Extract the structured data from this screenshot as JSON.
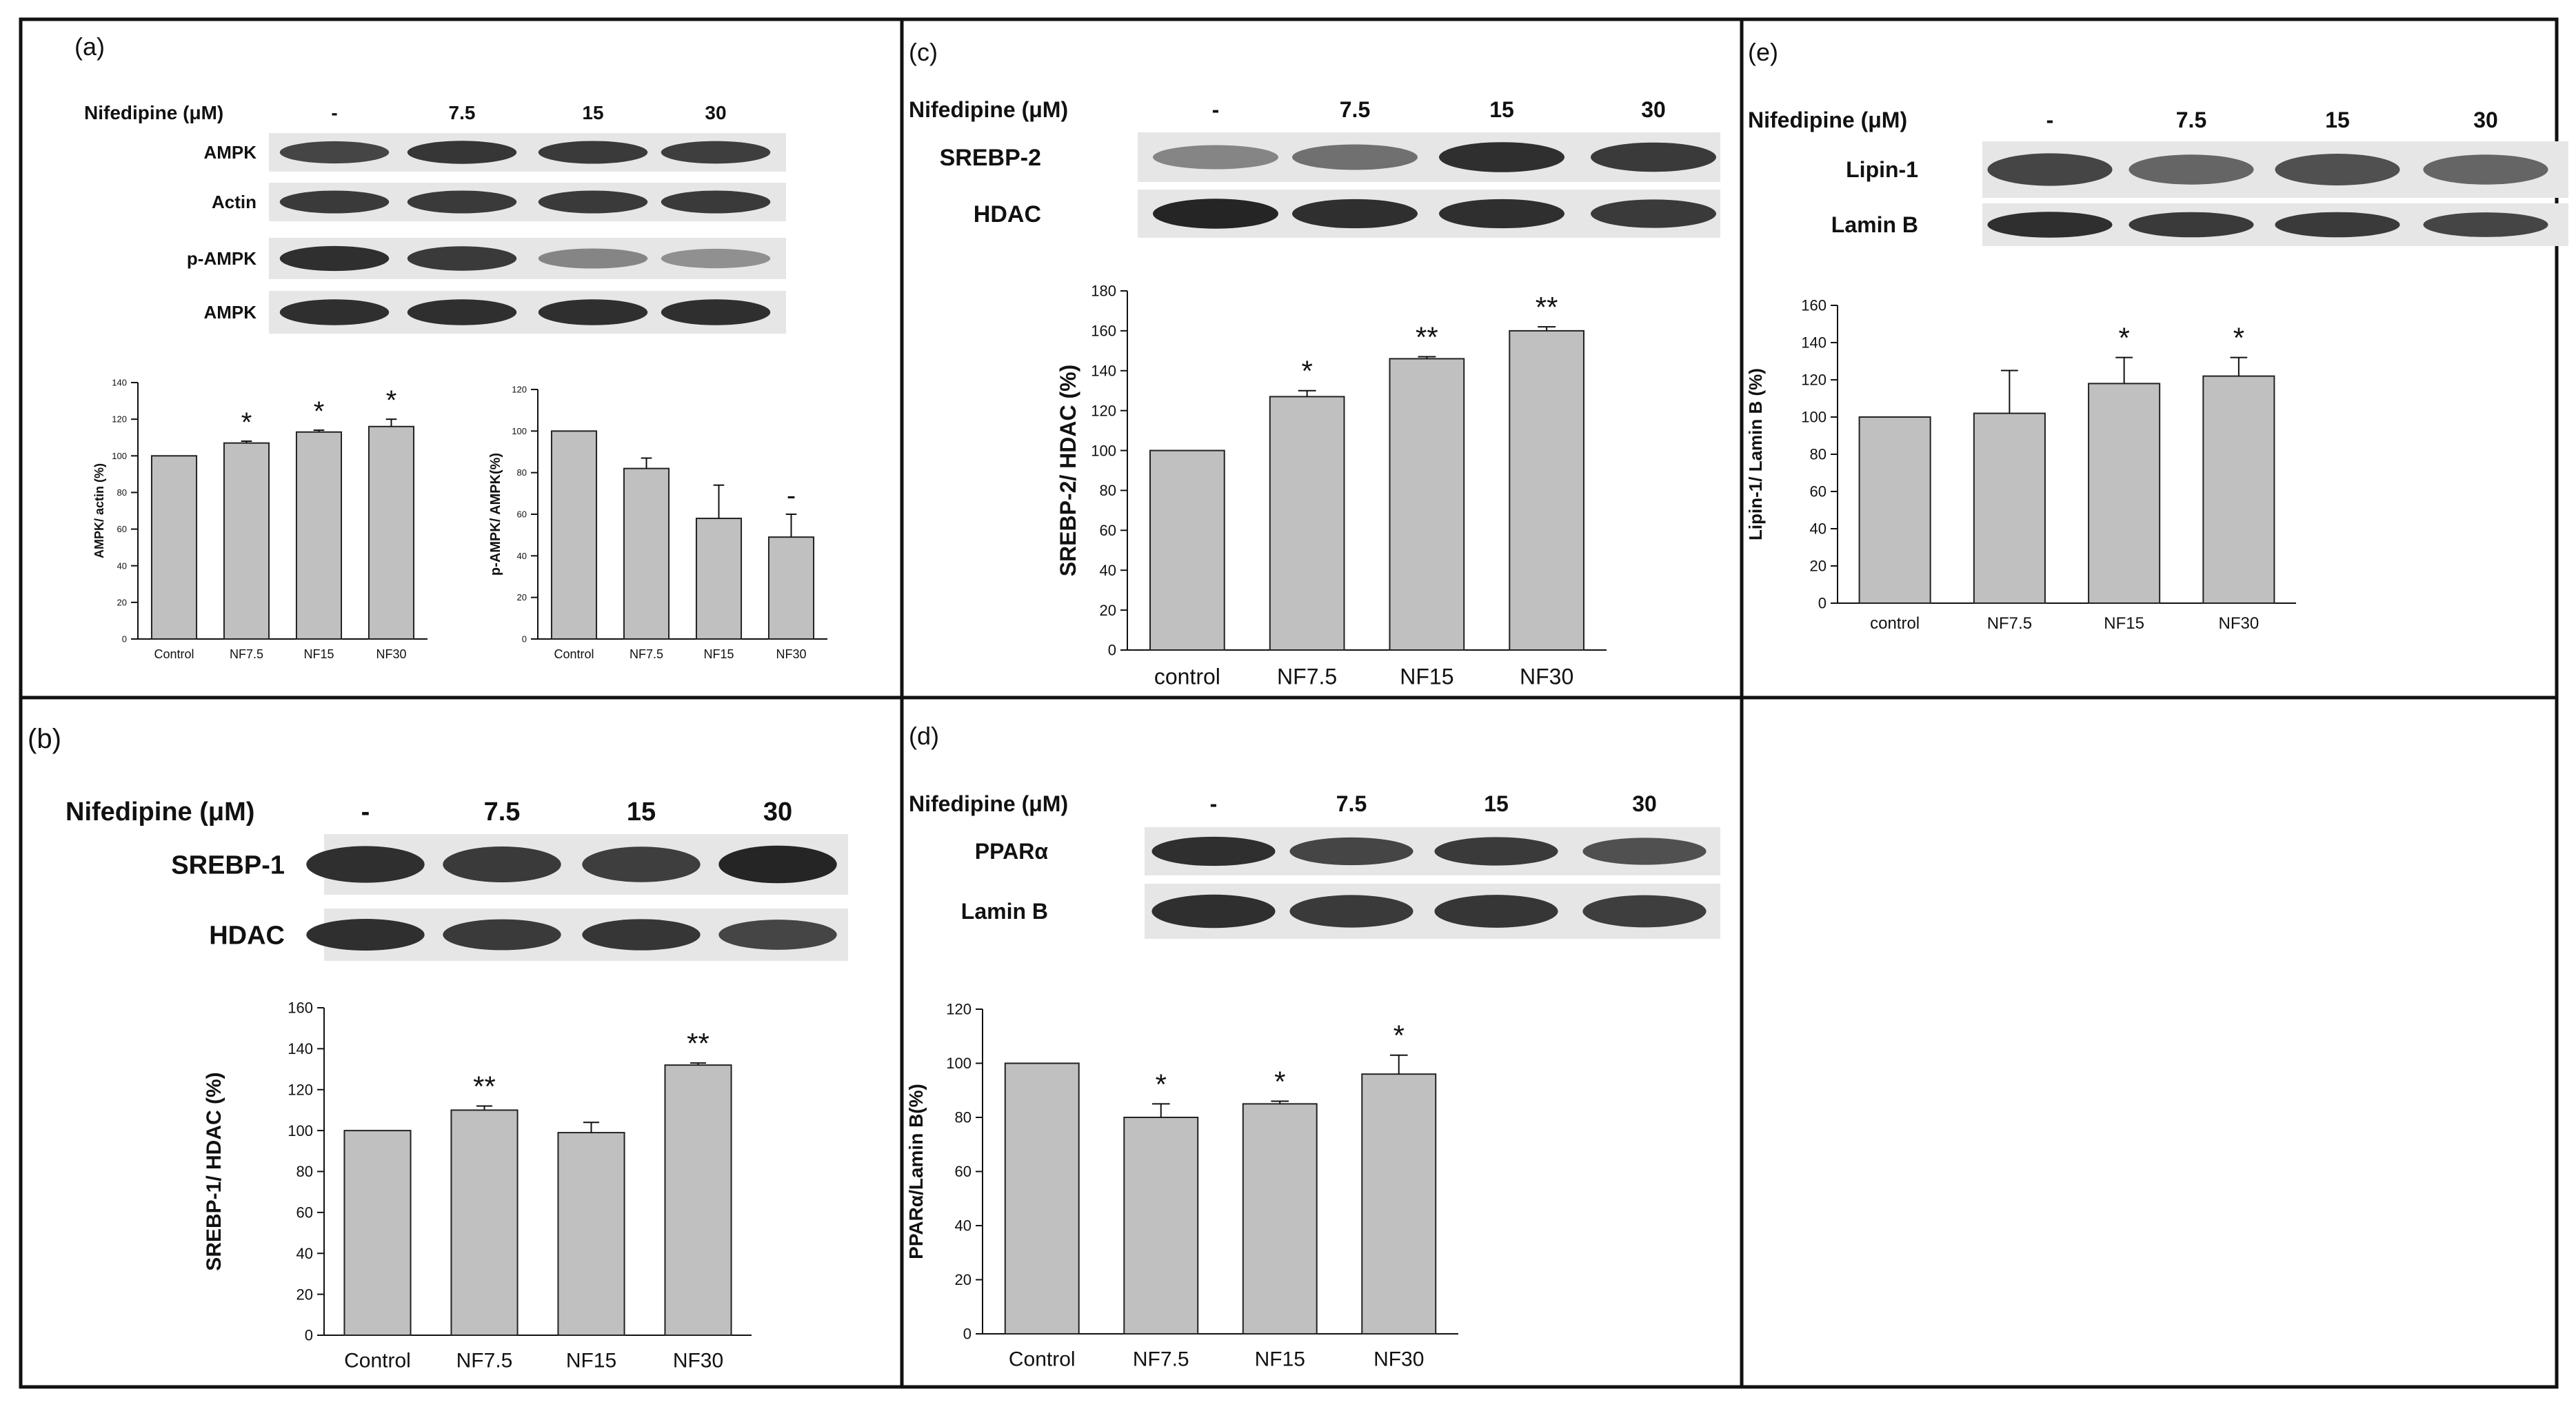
{
  "figure": {
    "panels": [
      {
        "id": "a",
        "letter": "(a)",
        "blot": {
          "treatment_label": "Nifedipine (μM)",
          "lanes": [
            "-",
            "7.5",
            "15",
            "30"
          ],
          "rows": [
            {
              "label": "AMPK",
              "intensities": [
                0.75,
                0.82,
                0.8,
                0.78
              ]
            },
            {
              "label": "Actin",
              "intensities": [
                0.8,
                0.8,
                0.8,
                0.8
              ]
            },
            {
              "label": "p-AMPK",
              "intensities": [
                0.85,
                0.8,
                0.45,
                0.4
              ]
            },
            {
              "label": "AMPK",
              "intensities": [
                0.85,
                0.85,
                0.85,
                0.85
              ]
            }
          ]
        }
      },
      {
        "id": "b",
        "letter": "(b)",
        "blot": {
          "treatment_label": "Nifedipine (μM)",
          "lanes": [
            "-",
            "7.5",
            "15",
            "30"
          ],
          "rows": [
            {
              "label": "SREBP-1",
              "intensities": [
                0.85,
                0.8,
                0.78,
                0.9
              ]
            },
            {
              "label": "HDAC",
              "intensities": [
                0.85,
                0.8,
                0.82,
                0.75
              ]
            }
          ]
        }
      },
      {
        "id": "c",
        "letter": "(c)",
        "blot": {
          "treatment_label": "Nifedipine (μM)",
          "lanes": [
            "-",
            "7.5",
            "15",
            "30"
          ],
          "rows": [
            {
              "label": "SREBP-2",
              "intensities": [
                0.45,
                0.55,
                0.85,
                0.8
              ]
            },
            {
              "label": "HDAC",
              "intensities": [
                0.9,
                0.85,
                0.85,
                0.8
              ]
            }
          ]
        }
      },
      {
        "id": "d",
        "letter": "(d)",
        "blot": {
          "treatment_label": "Nifedipine (μM)",
          "lanes": [
            "-",
            "7.5",
            "15",
            "30"
          ],
          "rows": [
            {
              "label": "PPARα",
              "intensities": [
                0.85,
                0.75,
                0.8,
                0.7
              ]
            },
            {
              "label": "Lamin B",
              "intensities": [
                0.85,
                0.8,
                0.82,
                0.78
              ]
            }
          ]
        }
      },
      {
        "id": "e",
        "letter": "(e)",
        "blot": {
          "treatment_label": "Nifedipine (μM)",
          "lanes": [
            "-",
            "7.5",
            "15",
            "30"
          ],
          "rows": [
            {
              "label": "Lipin-1",
              "intensities": [
                0.75,
                0.6,
                0.7,
                0.6
              ]
            },
            {
              "label": "Lamin B",
              "intensities": [
                0.85,
                0.8,
                0.8,
                0.75
              ]
            }
          ]
        }
      }
    ]
  },
  "chart_data": [
    {
      "panel": "a",
      "type": "bar",
      "title": "",
      "xlabel": "",
      "ylabel": "AMPK/ actin (%)",
      "categories": [
        "Control",
        "NF7.5",
        "NF15",
        "NF30"
      ],
      "values": [
        100,
        107,
        113,
        116
      ],
      "errors": [
        0,
        1,
        1,
        4
      ],
      "significance": [
        "",
        "*",
        "*",
        "*"
      ],
      "ylim": [
        0,
        140
      ],
      "yticks": [
        0,
        20,
        40,
        60,
        80,
        100,
        120,
        140
      ],
      "grid": false,
      "bar_color": "#c0c0c0"
    },
    {
      "panel": "a",
      "type": "bar",
      "title": "",
      "xlabel": "",
      "ylabel": "p-AMPK/ AMPK(%)",
      "categories": [
        "Control",
        "NF7.5",
        "NF15",
        "NF30"
      ],
      "values": [
        100,
        82,
        58,
        49
      ],
      "errors": [
        0,
        5,
        16,
        11
      ],
      "significance": [
        "",
        "",
        "",
        "-"
      ],
      "ylim": [
        0,
        120
      ],
      "yticks": [
        0,
        20,
        40,
        60,
        80,
        100,
        120
      ],
      "grid": false,
      "bar_color": "#c0c0c0"
    },
    {
      "panel": "b",
      "type": "bar",
      "title": "",
      "xlabel": "",
      "ylabel": "SREBP-1/ HDAC (%)",
      "categories": [
        "Control",
        "NF7.5",
        "NF15",
        "NF30"
      ],
      "values": [
        100,
        110,
        99,
        132
      ],
      "errors": [
        0,
        2,
        5,
        1
      ],
      "significance": [
        "",
        "**",
        "",
        "**"
      ],
      "ylim": [
        0,
        160
      ],
      "yticks": [
        0,
        20,
        40,
        60,
        80,
        100,
        120,
        140,
        160
      ],
      "grid": false,
      "bar_color": "#c0c0c0"
    },
    {
      "panel": "c",
      "type": "bar",
      "title": "",
      "xlabel": "",
      "ylabel": "SREBP-2/ HDAC (%)",
      "categories": [
        "control",
        "NF7.5",
        "NF15",
        "NF30"
      ],
      "values": [
        100,
        127,
        146,
        160
      ],
      "errors": [
        0,
        3,
        1,
        2
      ],
      "significance": [
        "",
        "*",
        "**",
        "**"
      ],
      "ylim": [
        0,
        180
      ],
      "yticks": [
        0,
        20,
        40,
        60,
        80,
        100,
        120,
        140,
        160,
        180
      ],
      "grid": false,
      "bar_color": "#c0c0c0"
    },
    {
      "panel": "d",
      "type": "bar",
      "title": "",
      "xlabel": "",
      "ylabel": "PPARα/Lamin B(%)",
      "categories": [
        "Control",
        "NF7.5",
        "NF15",
        "NF30"
      ],
      "values": [
        100,
        80,
        85,
        96
      ],
      "errors": [
        0,
        5,
        1,
        7
      ],
      "significance": [
        "",
        "*",
        "*",
        "*"
      ],
      "ylim": [
        0,
        120
      ],
      "yticks": [
        0,
        20,
        40,
        60,
        80,
        100,
        120
      ],
      "grid": false,
      "bar_color": "#c0c0c0"
    },
    {
      "panel": "e",
      "type": "bar",
      "title": "",
      "xlabel": "",
      "ylabel": "Lipin-1/ Lamin B (%)",
      "categories": [
        "control",
        "NF7.5",
        "NF15",
        "NF30"
      ],
      "values": [
        100,
        102,
        118,
        122
      ],
      "errors": [
        0,
        23,
        14,
        10
      ],
      "significance": [
        "",
        "",
        "*",
        "*"
      ],
      "ylim": [
        0,
        160
      ],
      "yticks": [
        0,
        20,
        40,
        60,
        80,
        100,
        120,
        140,
        160
      ],
      "grid": false,
      "bar_color": "#c0c0c0"
    }
  ]
}
